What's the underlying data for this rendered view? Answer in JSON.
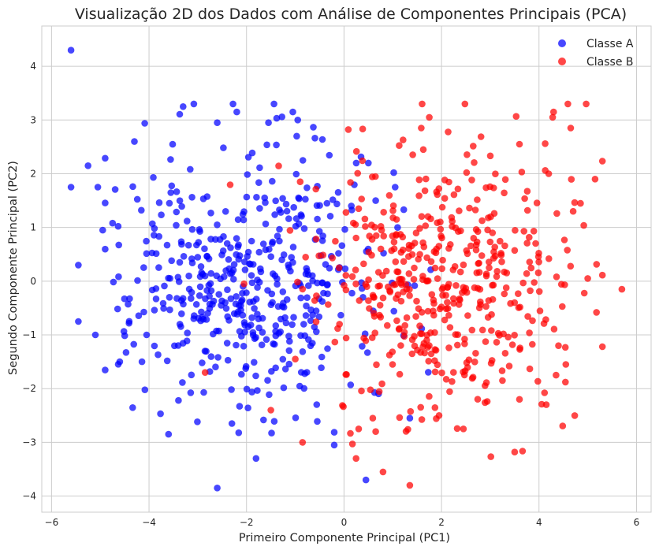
{
  "chart_data": {
    "type": "scatter",
    "title": "Visualização 2D dos Dados com Análise de Componentes Principais (PCA)",
    "xlabel": "Primeiro Componente Principal (PC1)",
    "ylabel": "Segundo Componente Principal (PC2)",
    "xlim": [
      -6.2,
      6.3
    ],
    "ylim": [
      -4.3,
      4.75
    ],
    "xticks": [
      -6,
      -4,
      -2,
      0,
      2,
      4,
      6
    ],
    "yticks": [
      -4,
      -3,
      -2,
      -1,
      0,
      1,
      2,
      3,
      4
    ],
    "grid": true,
    "legend_position": "top-right",
    "series": [
      {
        "name": "Classe A",
        "color": "#0000ff",
        "center": [
          -2.0,
          0.0
        ],
        "spread": [
          1.25,
          1.25
        ],
        "count": 500,
        "seed": 7,
        "points": [
          [
            -5.6,
            4.3
          ],
          [
            -2.6,
            -3.85
          ],
          [
            -0.2,
            -3.05
          ],
          [
            0.45,
            -3.7
          ],
          [
            -3.6,
            -2.85
          ],
          [
            -2.3,
            -2.65
          ],
          [
            -5.25,
            2.15
          ],
          [
            -5.6,
            1.75
          ],
          [
            -5.05,
            1.75
          ],
          [
            -4.3,
            2.6
          ],
          [
            -4.95,
            0.95
          ],
          [
            -5.45,
            0.3
          ],
          [
            -5.45,
            -0.75
          ],
          [
            -5.1,
            -1.0
          ],
          [
            -4.6,
            -1.5
          ],
          [
            -4.05,
            -1.0
          ],
          [
            -3.3,
            3.25
          ],
          [
            -2.2,
            3.15
          ],
          [
            -1.05,
            3.15
          ],
          [
            -0.95,
            3.0
          ],
          [
            -2.6,
            2.95
          ],
          [
            -1.55,
            2.95
          ],
          [
            -0.35,
            1.45
          ],
          [
            1.05,
            1.75
          ],
          [
            1.35,
            -2.55
          ],
          [
            0.25,
            2.2
          ],
          [
            0.5,
            2.2
          ],
          [
            0.15,
            1.4
          ],
          [
            0.65,
            1.5
          ],
          [
            1.1,
            1.0
          ]
        ]
      },
      {
        "name": "Classe B",
        "color": "#ff0000",
        "center": [
          2.0,
          0.0
        ],
        "spread": [
          1.25,
          1.25
        ],
        "count": 500,
        "seed": 11,
        "points": [
          [
            5.7,
            -0.15
          ],
          [
            5.15,
            1.9
          ],
          [
            5.0,
            0.05
          ],
          [
            4.7,
            1.3
          ],
          [
            4.65,
            2.85
          ],
          [
            4.3,
            3.15
          ],
          [
            4.28,
            3.05
          ],
          [
            4.2,
            2.0
          ],
          [
            4.15,
            -2.3
          ],
          [
            4.55,
            -1.55
          ],
          [
            4.4,
            -1.2
          ],
          [
            4.35,
            -1.75
          ],
          [
            3.6,
            2.55
          ],
          [
            1.75,
            3.05
          ],
          [
            1.95,
            -2.5
          ],
          [
            0.8,
            -3.55
          ],
          [
            1.35,
            -3.8
          ],
          [
            -0.85,
            -3.0
          ],
          [
            0.3,
            -2.75
          ],
          [
            0.65,
            -2.8
          ],
          [
            -1.0,
            -1.45
          ],
          [
            -1.5,
            -2.4
          ],
          [
            -2.85,
            -1.7
          ],
          [
            -2.05,
            -0.05
          ],
          [
            -0.9,
            1.85
          ],
          [
            0.3,
            1.35
          ],
          [
            -0.1,
            0.25
          ],
          [
            2.45,
            -2.75
          ],
          [
            3.25,
            -1.85
          ],
          [
            3.6,
            -2.2
          ]
        ]
      }
    ]
  }
}
